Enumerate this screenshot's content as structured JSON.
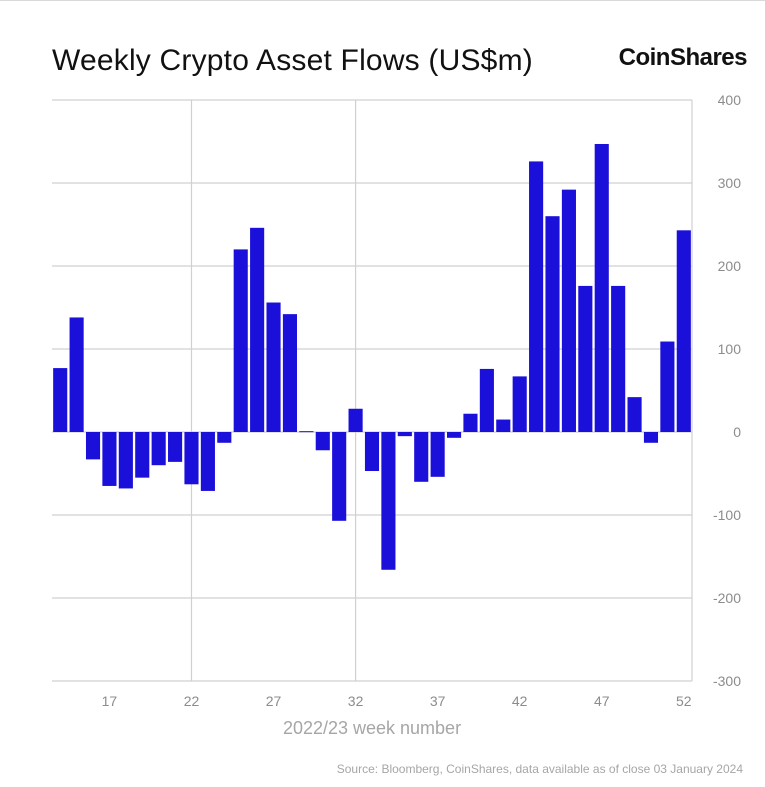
{
  "header": {
    "title": "Weekly Crypto Asset Flows (US$m)",
    "logo": "CoinShares"
  },
  "footer": {
    "source": "Source: Bloomberg, CoinShares, data available as of close 03 January 2024"
  },
  "colors": {
    "bar": "#1b10d9",
    "grid": "#d0d0d0",
    "text": "#111111",
    "muted": "#a6a6a6"
  },
  "chart_data": {
    "type": "bar",
    "title": "Weekly Crypto Asset Flows (US$m)",
    "xlabel": "2022/23 week number",
    "ylabel": "",
    "ylim": [
      -300,
      400
    ],
    "yticks": [
      400,
      300,
      200,
      100,
      0,
      -100,
      -200,
      -300
    ],
    "xticks": [
      17,
      22,
      27,
      32,
      37,
      42,
      47,
      52
    ],
    "x": [
      14,
      15,
      16,
      17,
      18,
      19,
      20,
      21,
      22,
      23,
      24,
      25,
      26,
      27,
      28,
      29,
      30,
      31,
      32,
      33,
      34,
      35,
      36,
      37,
      38,
      39,
      40,
      41,
      42,
      43,
      44,
      45,
      46,
      47,
      48,
      49,
      50,
      51,
      52
    ],
    "values": [
      77,
      138,
      -33,
      -65,
      -68,
      -55,
      -40,
      -36,
      -63,
      -71,
      -13,
      220,
      246,
      156,
      142,
      1,
      -22,
      -107,
      28,
      -47,
      -166,
      -5,
      -60,
      -54,
      -7,
      22,
      76,
      15,
      67,
      326,
      260,
      292,
      176,
      347,
      176,
      42,
      -13,
      109,
      243
    ],
    "grid": true,
    "legend": "none"
  }
}
